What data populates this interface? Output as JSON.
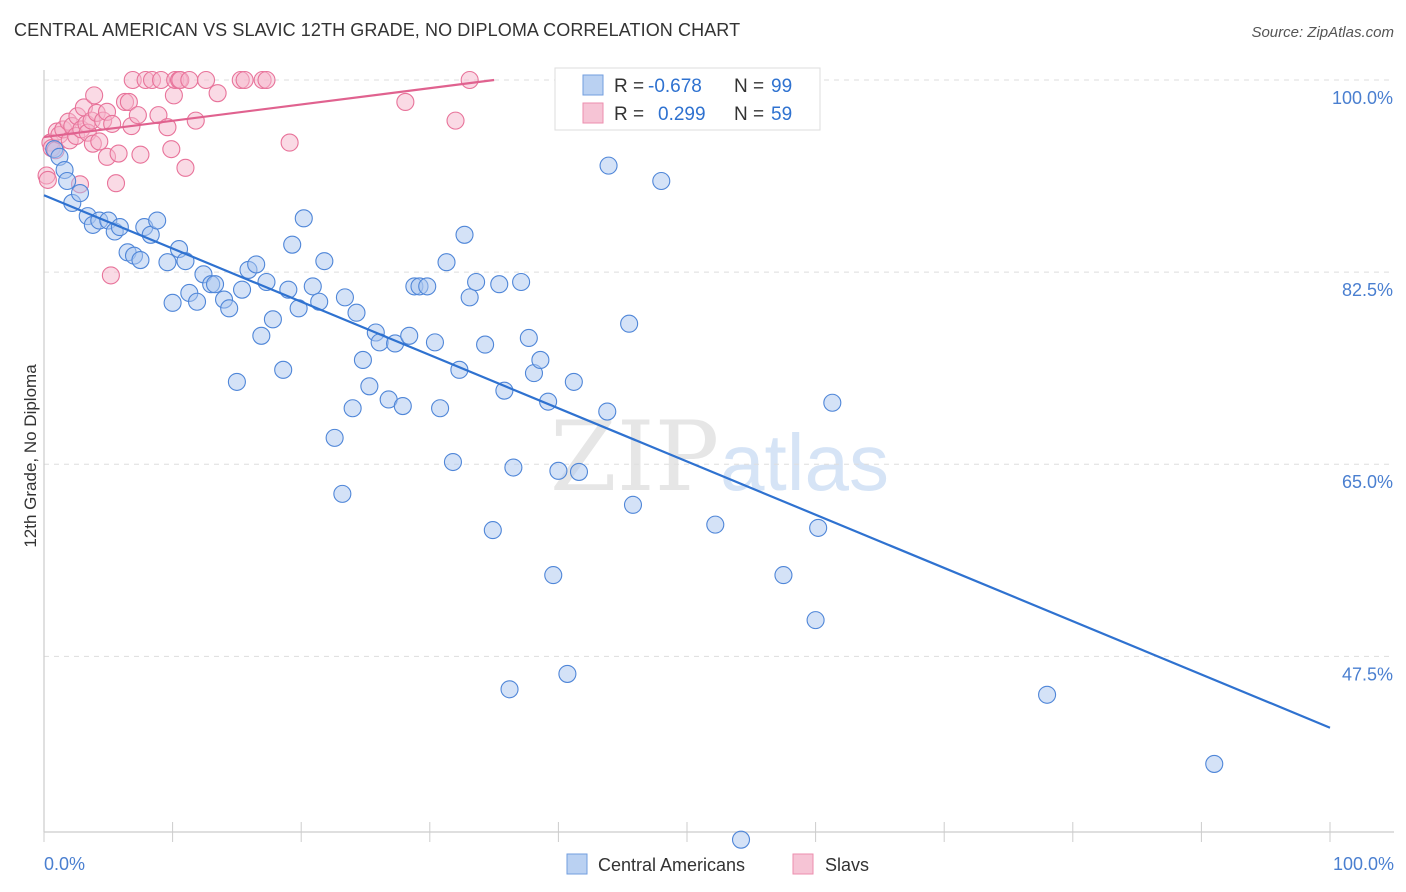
{
  "title": "CENTRAL AMERICAN VS SLAVIC 12TH GRADE, NO DIPLOMA CORRELATION CHART",
  "source": "Source: ZipAtlas.com",
  "watermark": {
    "zip": "ZIP",
    "atlas": "atlas"
  },
  "colors": {
    "blue": "#4f86d8",
    "blue_fill": "#a9c6f0",
    "blue_line": "#2f72d0",
    "pink": "#e8739a",
    "pink_fill": "#f5b6cb",
    "pink_line": "#e0628f",
    "axis_text": "#4a7fd0",
    "grid": "#dddddd"
  },
  "stats": [
    {
      "series": "Central Americans",
      "r_label": "R =",
      "r_value": "-0.678",
      "n_label": "N =",
      "n_value": "99"
    },
    {
      "series": "Slavs",
      "r_label": "R =",
      "r_value": "0.299",
      "n_label": "N =",
      "n_value": "59"
    }
  ],
  "chart_data": {
    "type": "scatter",
    "title": "CENTRAL AMERICAN VS SLAVIC 12TH GRADE, NO DIPLOMA CORRELATION CHART",
    "xlabel": "",
    "ylabel": "12th Grade, No Diploma",
    "xlim": [
      0,
      100
    ],
    "ylim": [
      30,
      101
    ],
    "x_tick_labels": [
      "0.0%",
      "100.0%"
    ],
    "y_ticks": [
      47.5,
      65.0,
      82.5,
      100.0
    ],
    "y_tick_labels": [
      "47.5%",
      "65.0%",
      "82.5%",
      "100.0%"
    ],
    "grid": true,
    "legend_position": "bottom",
    "series": [
      {
        "name": "Central Americans",
        "color": "#4f86d8",
        "trend": {
          "x": [
            0,
            100
          ],
          "y": [
            89.5,
            41.0
          ]
        },
        "points": [
          [
            0.8,
            93.7
          ],
          [
            1.2,
            93.0
          ],
          [
            1.6,
            91.8
          ],
          [
            1.8,
            90.8
          ],
          [
            2.2,
            88.8
          ],
          [
            2.8,
            89.7
          ],
          [
            3.4,
            87.6
          ],
          [
            3.8,
            86.8
          ],
          [
            4.3,
            87.2
          ],
          [
            5.0,
            87.2
          ],
          [
            5.5,
            86.2
          ],
          [
            5.9,
            86.6
          ],
          [
            6.5,
            84.3
          ],
          [
            7.0,
            84.0
          ],
          [
            7.5,
            83.6
          ],
          [
            7.8,
            86.6
          ],
          [
            8.3,
            85.9
          ],
          [
            8.8,
            87.2
          ],
          [
            9.6,
            83.4
          ],
          [
            10.0,
            79.7
          ],
          [
            10.5,
            84.6
          ],
          [
            11.0,
            83.5
          ],
          [
            11.3,
            80.6
          ],
          [
            11.9,
            79.8
          ],
          [
            12.4,
            82.3
          ],
          [
            13.0,
            81.4
          ],
          [
            13.3,
            81.4
          ],
          [
            14.0,
            80.0
          ],
          [
            14.4,
            79.2
          ],
          [
            15.0,
            72.5
          ],
          [
            15.4,
            80.9
          ],
          [
            15.9,
            82.7
          ],
          [
            16.5,
            83.2
          ],
          [
            16.9,
            76.7
          ],
          [
            17.3,
            81.6
          ],
          [
            17.8,
            78.2
          ],
          [
            18.6,
            73.6
          ],
          [
            19.0,
            80.9
          ],
          [
            19.3,
            85.0
          ],
          [
            19.8,
            79.2
          ],
          [
            20.2,
            87.4
          ],
          [
            20.9,
            81.2
          ],
          [
            21.4,
            79.8
          ],
          [
            21.8,
            83.5
          ],
          [
            22.6,
            67.4
          ],
          [
            23.2,
            62.3
          ],
          [
            23.4,
            80.2
          ],
          [
            24.0,
            70.1
          ],
          [
            24.3,
            78.8
          ],
          [
            24.8,
            74.5
          ],
          [
            25.3,
            72.1
          ],
          [
            25.8,
            77.0
          ],
          [
            26.1,
            76.1
          ],
          [
            26.8,
            70.9
          ],
          [
            27.3,
            76.0
          ],
          [
            27.9,
            70.3
          ],
          [
            28.4,
            76.7
          ],
          [
            28.8,
            81.2
          ],
          [
            29.2,
            81.2
          ],
          [
            29.8,
            81.2
          ],
          [
            30.4,
            76.1
          ],
          [
            30.8,
            70.1
          ],
          [
            31.3,
            83.4
          ],
          [
            31.8,
            65.2
          ],
          [
            32.3,
            73.6
          ],
          [
            32.7,
            85.9
          ],
          [
            33.1,
            80.2
          ],
          [
            33.6,
            81.6
          ],
          [
            34.3,
            75.9
          ],
          [
            34.9,
            59.0
          ],
          [
            35.4,
            81.4
          ],
          [
            35.8,
            71.7
          ],
          [
            36.2,
            44.5
          ],
          [
            36.5,
            64.7
          ],
          [
            37.1,
            81.6
          ],
          [
            37.7,
            76.5
          ],
          [
            38.1,
            73.3
          ],
          [
            38.6,
            74.5
          ],
          [
            39.2,
            70.7
          ],
          [
            39.6,
            54.9
          ],
          [
            40.0,
            64.4
          ],
          [
            40.7,
            45.9
          ],
          [
            41.2,
            72.5
          ],
          [
            41.6,
            64.3
          ],
          [
            43.8,
            69.8
          ],
          [
            43.9,
            92.2
          ],
          [
            45.5,
            77.8
          ],
          [
            45.8,
            61.3
          ],
          [
            48.0,
            90.8
          ],
          [
            52.2,
            59.5
          ],
          [
            57.5,
            54.9
          ],
          [
            60.0,
            50.8
          ],
          [
            60.2,
            59.2
          ],
          [
            61.3,
            70.6
          ],
          [
            78.0,
            44.0
          ],
          [
            91.0,
            37.7
          ],
          [
            54.2,
            30.8
          ]
        ]
      },
      {
        "name": "Slavs",
        "color": "#e8739a",
        "trend": {
          "x": [
            0,
            35
          ],
          "y": [
            94.8,
            100.0
          ]
        },
        "points": [
          [
            0.2,
            91.3
          ],
          [
            0.5,
            94.3
          ],
          [
            0.6,
            93.8
          ],
          [
            0.9,
            93.6
          ],
          [
            1.0,
            95.3
          ],
          [
            1.2,
            95.0
          ],
          [
            1.5,
            95.5
          ],
          [
            1.9,
            96.2
          ],
          [
            2.0,
            94.5
          ],
          [
            2.2,
            95.8
          ],
          [
            2.5,
            94.9
          ],
          [
            2.6,
            96.7
          ],
          [
            2.9,
            95.5
          ],
          [
            3.1,
            97.5
          ],
          [
            3.3,
            96.0
          ],
          [
            3.4,
            95.2
          ],
          [
            3.7,
            96.3
          ],
          [
            3.8,
            94.2
          ],
          [
            3.9,
            98.6
          ],
          [
            4.1,
            97.0
          ],
          [
            4.3,
            94.4
          ],
          [
            4.6,
            96.3
          ],
          [
            4.9,
            97.1
          ],
          [
            4.9,
            93.0
          ],
          [
            5.3,
            96.0
          ],
          [
            5.6,
            90.6
          ],
          [
            5.8,
            93.3
          ],
          [
            6.3,
            98.0
          ],
          [
            6.6,
            98.0
          ],
          [
            6.8,
            95.8
          ],
          [
            6.9,
            100.0
          ],
          [
            7.3,
            96.8
          ],
          [
            7.5,
            93.2
          ],
          [
            7.9,
            100.0
          ],
          [
            8.4,
            100.0
          ],
          [
            8.9,
            96.8
          ],
          [
            9.1,
            100.0
          ],
          [
            9.6,
            95.7
          ],
          [
            9.9,
            93.7
          ],
          [
            10.1,
            98.6
          ],
          [
            10.2,
            100.0
          ],
          [
            10.5,
            100.0
          ],
          [
            10.6,
            100.0
          ],
          [
            11.0,
            92.0
          ],
          [
            11.3,
            100.0
          ],
          [
            11.8,
            96.3
          ],
          [
            12.6,
            100.0
          ],
          [
            13.5,
            98.8
          ],
          [
            15.3,
            100.0
          ],
          [
            15.6,
            100.0
          ],
          [
            17.0,
            100.0
          ],
          [
            17.3,
            100.0
          ],
          [
            19.1,
            94.3
          ],
          [
            28.1,
            98.0
          ],
          [
            32.0,
            96.3
          ],
          [
            33.1,
            100.0
          ],
          [
            2.8,
            90.5
          ],
          [
            5.2,
            82.2
          ],
          [
            0.3,
            90.9
          ]
        ]
      }
    ]
  }
}
